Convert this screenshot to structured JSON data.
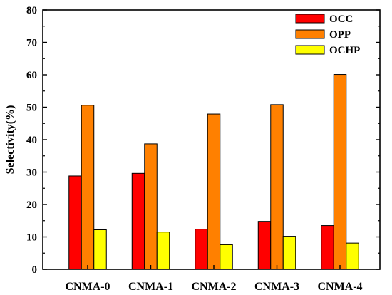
{
  "chart_data": {
    "type": "bar",
    "title": "",
    "xlabel": "",
    "ylabel": "Selectivity(%)",
    "ylim": [
      0,
      80
    ],
    "yticks": [
      0,
      10,
      20,
      30,
      40,
      50,
      60,
      70,
      80
    ],
    "grid": false,
    "legend_position": "top-right",
    "categories": [
      "CNMA-0",
      "CNMA-1",
      "CNMA-2",
      "CNMA-3",
      "CNMA-4"
    ],
    "series": [
      {
        "name": "OCC",
        "color": "#ff0000",
        "values": [
          28.8,
          29.6,
          12.4,
          14.8,
          13.5
        ]
      },
      {
        "name": "OPP",
        "color": "#ff8000",
        "values": [
          50.6,
          38.7,
          47.9,
          50.8,
          60.1
        ]
      },
      {
        "name": "OCHP",
        "color": "#ffff00",
        "values": [
          12.2,
          11.5,
          7.6,
          10.2,
          8.1
        ]
      }
    ]
  }
}
